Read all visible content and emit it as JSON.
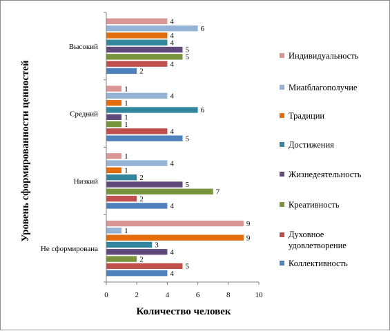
{
  "chart_data": {
    "type": "bar",
    "orientation": "horizontal",
    "title": "",
    "xlabel": "Количество человек",
    "ylabel": "Уровень сформированности ценностей",
    "xlim": [
      0,
      10
    ],
    "xticks": [
      0,
      2,
      4,
      6,
      8,
      10
    ],
    "grid": false,
    "legend_position": "right",
    "categories": [
      "Высокий",
      "Средний",
      "Низкий",
      "Не сформирована"
    ],
    "series": [
      {
        "name": "Индивидуальность",
        "color": "#D99694",
        "values": [
          4,
          1,
          1,
          9
        ]
      },
      {
        "name": "Миatблагополучие",
        "color": "#95B3D7",
        "values": [
          6,
          4,
          4,
          1
        ]
      },
      {
        "name": "Традиции",
        "color": "#E46C0A",
        "values": [
          4,
          1,
          1,
          9
        ]
      },
      {
        "name": "Достижения",
        "color": "#31859C",
        "values": [
          4,
          6,
          2,
          3
        ]
      },
      {
        "name": "Жизнедеятельность",
        "color": "#604A7B",
        "values": [
          5,
          1,
          5,
          4
        ]
      },
      {
        "name": "Креативность",
        "color": "#77933C",
        "values": [
          5,
          1,
          7,
          2
        ]
      },
      {
        "name": "Духовное удовлетворение",
        "color": "#C0504D",
        "values": [
          4,
          4,
          2,
          5
        ]
      },
      {
        "name": "Коллективность",
        "color": "#4F81BD",
        "values": [
          2,
          5,
          4,
          4
        ]
      }
    ]
  }
}
